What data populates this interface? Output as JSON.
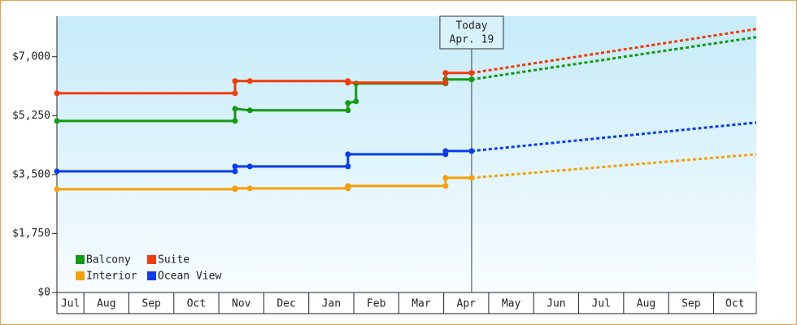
{
  "chart_data": {
    "type": "line",
    "categories": [
      "Jul",
      "Aug",
      "Sep",
      "Oct",
      "Nov",
      "Dec",
      "Jan",
      "Feb",
      "Mar",
      "Apr",
      "May",
      "Jun",
      "Jul",
      "Aug",
      "Sep",
      "Oct"
    ],
    "xlim": [
      0.4,
      15.95
    ],
    "ylim": [
      0,
      8200
    ],
    "yticks": [
      {
        "value": 0,
        "label": "$0"
      },
      {
        "value": 1750,
        "label": "$1,750"
      },
      {
        "value": 3500,
        "label": "$3,500"
      },
      {
        "value": 5250,
        "label": "$5,250"
      },
      {
        "value": 7000,
        "label": "$7,000"
      }
    ],
    "today_x": 9.62,
    "today_label": [
      "Today",
      "Apr. 19"
    ],
    "projection_x": 15.95,
    "legend": "lower left",
    "series": [
      {
        "name": "Balcony",
        "color": "#129a12",
        "x": [
          0.4,
          4.36,
          4.36,
          4.69,
          6.87,
          6.87,
          7.05,
          7.05,
          9.04,
          9.04,
          9.62
        ],
        "values": [
          5093,
          5093,
          5455,
          5407,
          5407,
          5624,
          5672,
          6203,
          6203,
          6324,
          6324
        ],
        "projection": 7579
      },
      {
        "name": "Suite",
        "color": "#f03c0a",
        "x": [
          0.4,
          4.36,
          4.36,
          4.69,
          6.87,
          6.87,
          9.04,
          9.04,
          9.62
        ],
        "values": [
          5914,
          5914,
          6276,
          6276,
          6276,
          6228,
          6228,
          6517,
          6517
        ],
        "projection": 7821
      },
      {
        "name": "Interior",
        "color": "#f5a00a",
        "x": [
          0.4,
          4.36,
          4.36,
          4.69,
          6.87,
          6.87,
          9.04,
          9.04,
          9.62
        ],
        "values": [
          3066,
          3066,
          3090,
          3090,
          3090,
          3162,
          3162,
          3403,
          3403
        ],
        "projection": 4103
      },
      {
        "name": "Ocean View",
        "color": "#0a3cf0",
        "x": [
          0.4,
          4.36,
          4.36,
          4.69,
          6.87,
          6.87,
          9.04,
          9.04,
          9.62
        ],
        "values": [
          3597,
          3597,
          3741,
          3741,
          3741,
          4103,
          4103,
          4200,
          4200
        ],
        "projection": 5045
      }
    ]
  }
}
